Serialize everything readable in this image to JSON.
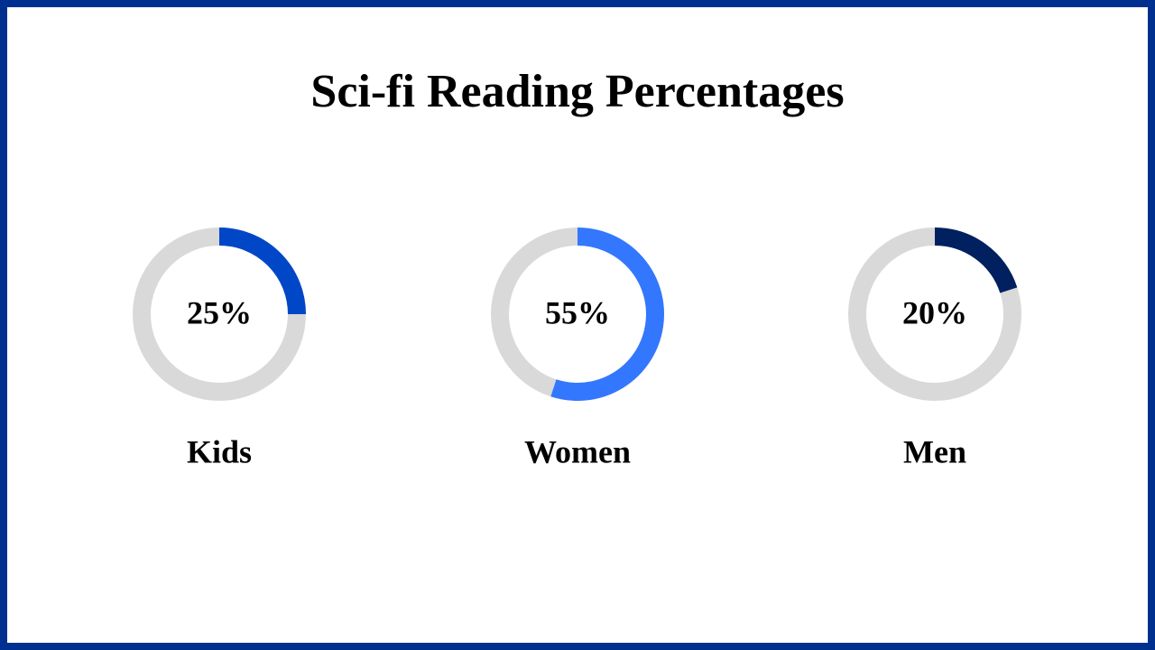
{
  "title": "Sci-fi Reading Percentages",
  "chart_data": [
    {
      "type": "donut",
      "label": "Kids",
      "values": [
        25
      ],
      "value_labels": [
        "25%"
      ],
      "color": "#0047c8",
      "track_color": "#d9d9d9",
      "ylim": [
        0,
        100
      ]
    },
    {
      "type": "donut",
      "label": "Women",
      "values": [
        55
      ],
      "value_labels": [
        "55%"
      ],
      "color": "#3377ff",
      "track_color": "#d9d9d9",
      "ylim": [
        0,
        100
      ]
    },
    {
      "type": "donut",
      "label": "Men",
      "values": [
        20
      ],
      "value_labels": [
        "20%"
      ],
      "color": "#00205f",
      "track_color": "#d9d9d9",
      "ylim": [
        0,
        100
      ]
    }
  ]
}
